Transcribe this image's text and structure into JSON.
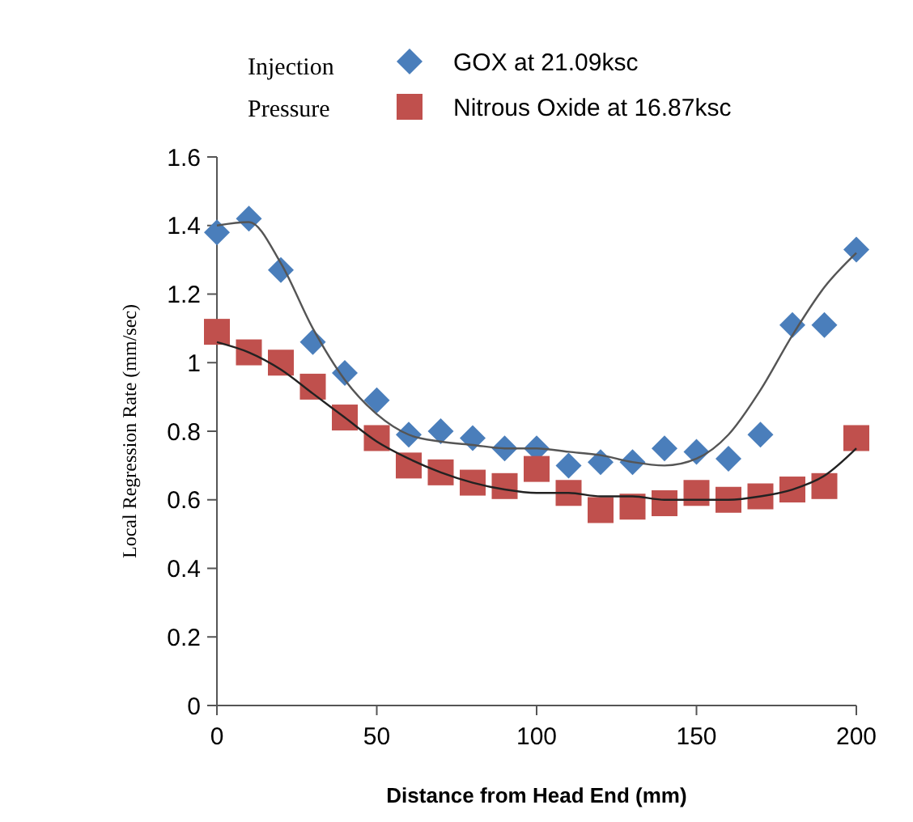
{
  "chart_data": {
    "type": "scatter",
    "xlabel": "Distance from Head End (mm)",
    "ylabel": "Local Regression Rate (mm/sec)",
    "legend_title": "Injection Pressure",
    "legend": "top",
    "grid": false,
    "xlim": [
      0,
      200
    ],
    "xticks": [
      0,
      50,
      100,
      150,
      200
    ],
    "ylim": [
      0,
      1.6
    ],
    "yticks": [
      0,
      0.2,
      0.4,
      0.6,
      0.8,
      1,
      1.2,
      1.4,
      1.6
    ],
    "series": [
      {
        "name": "GOX at 21.09ksc",
        "color": "#4a7ebb",
        "marker": "diamond",
        "x": [
          0,
          10,
          20,
          30,
          40,
          50,
          60,
          70,
          80,
          90,
          100,
          110,
          120,
          130,
          140,
          150,
          160,
          170,
          180,
          190,
          200
        ],
        "values": [
          1.38,
          1.42,
          1.27,
          1.06,
          0.97,
          0.89,
          0.79,
          0.8,
          0.78,
          0.75,
          0.75,
          0.7,
          0.71,
          0.71,
          0.75,
          0.74,
          0.72,
          0.79,
          1.11,
          1.11,
          1.33
        ]
      },
      {
        "name": "Nitrous Oxide at 16.87ksc",
        "color": "#c0504d",
        "marker": "square",
        "x": [
          0,
          10,
          20,
          30,
          40,
          50,
          60,
          70,
          80,
          90,
          100,
          110,
          120,
          130,
          140,
          150,
          160,
          170,
          180,
          190,
          200
        ],
        "values": [
          1.09,
          1.03,
          1.0,
          0.93,
          0.84,
          0.78,
          0.7,
          0.68,
          0.65,
          0.64,
          0.69,
          0.62,
          0.57,
          0.58,
          0.59,
          0.62,
          0.6,
          0.61,
          0.63,
          0.64,
          0.78
        ]
      },
      {
        "type": "line",
        "color": "#555555",
        "marker": "none",
        "x": [
          0,
          10,
          20,
          30,
          40,
          50,
          60,
          70,
          80,
          90,
          100,
          110,
          120,
          130,
          140,
          150,
          160,
          170,
          180,
          190,
          200
        ],
        "values": [
          1.4,
          1.41,
          1.29,
          1.1,
          0.95,
          0.85,
          0.79,
          0.77,
          0.76,
          0.75,
          0.75,
          0.74,
          0.73,
          0.71,
          0.7,
          0.72,
          0.79,
          0.92,
          1.08,
          1.22,
          1.32
        ]
      },
      {
        "type": "line",
        "color": "#222222",
        "marker": "none",
        "x": [
          0,
          10,
          20,
          30,
          40,
          50,
          60,
          70,
          80,
          90,
          100,
          110,
          120,
          130,
          140,
          150,
          160,
          170,
          180,
          190,
          200
        ],
        "values": [
          1.06,
          1.03,
          0.98,
          0.91,
          0.84,
          0.77,
          0.72,
          0.68,
          0.65,
          0.63,
          0.62,
          0.62,
          0.61,
          0.61,
          0.6,
          0.6,
          0.6,
          0.61,
          0.63,
          0.67,
          0.75
        ]
      }
    ]
  }
}
